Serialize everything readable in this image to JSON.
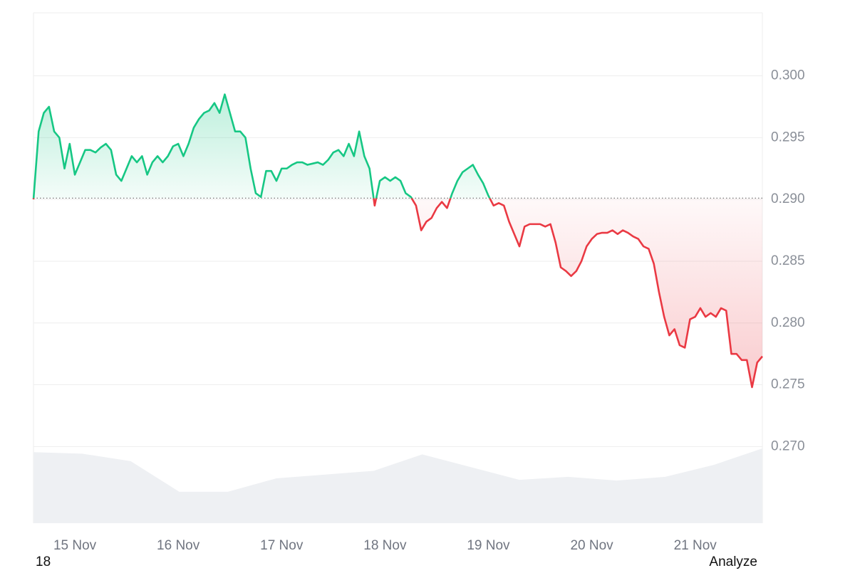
{
  "chart_data": {
    "type": "line",
    "categories": [
      null,
      null,
      null,
      null,
      null,
      null,
      null,
      null,
      "15 Nov",
      null,
      null,
      null,
      null,
      null,
      null,
      null,
      null,
      null,
      null,
      null,
      null,
      null,
      null,
      null,
      null,
      null,
      null,
      null,
      "16 Nov",
      null,
      null,
      null,
      null,
      null,
      null,
      null,
      null,
      null,
      null,
      null,
      null,
      null,
      null,
      null,
      null,
      null,
      null,
      null,
      "17 Nov",
      null,
      null,
      null,
      null,
      null,
      null,
      null,
      null,
      null,
      null,
      null,
      null,
      null,
      null,
      null,
      null,
      null,
      null,
      null,
      "18 Nov",
      null,
      null,
      null,
      null,
      null,
      null,
      null,
      null,
      null,
      null,
      null,
      null,
      null,
      null,
      null,
      null,
      null,
      null,
      null,
      "19 Nov",
      null,
      null,
      null,
      null,
      null,
      null,
      null,
      null,
      null,
      null,
      null,
      null,
      null,
      null,
      null,
      null,
      null,
      null,
      null,
      "20 Nov",
      null,
      null,
      null,
      null,
      null,
      null,
      null,
      null,
      null,
      null,
      null,
      null,
      null,
      null,
      null,
      null,
      null,
      null,
      null,
      "21 Nov",
      null,
      null,
      null,
      null,
      null,
      null,
      null,
      null,
      null,
      null,
      null,
      null,
      null
    ],
    "series": [
      {
        "color_up": "#16c784",
        "color_down": "#ea3943",
        "values": [
          0.29,
          0.2955,
          0.297,
          0.2975,
          0.2955,
          0.295,
          0.2925,
          0.2945,
          0.292,
          0.293,
          0.294,
          0.294,
          0.2938,
          0.2942,
          0.2945,
          0.294,
          0.292,
          0.2915,
          0.2925,
          0.2935,
          0.293,
          0.2935,
          0.292,
          0.293,
          0.2935,
          0.293,
          0.2935,
          0.2943,
          0.2945,
          0.2935,
          0.2945,
          0.2958,
          0.2965,
          0.297,
          0.2972,
          0.2978,
          0.297,
          0.2985,
          0.297,
          0.2955,
          0.2955,
          0.295,
          0.2925,
          0.2905,
          0.2902,
          0.2923,
          0.2923,
          0.2915,
          0.2925,
          0.2925,
          0.2928,
          0.293,
          0.293,
          0.2928,
          0.2929,
          0.293,
          0.2928,
          0.2932,
          0.2938,
          0.294,
          0.2935,
          0.2945,
          0.2935,
          0.2955,
          0.2935,
          0.2925,
          0.2895,
          0.2915,
          0.2918,
          0.2915,
          0.2918,
          0.2915,
          0.2905,
          0.2902,
          0.2895,
          0.2875,
          0.2882,
          0.2885,
          0.2893,
          0.2898,
          0.2893,
          0.2905,
          0.2915,
          0.2922,
          0.2925,
          0.2928,
          0.292,
          0.2913,
          0.2903,
          0.2895,
          0.2897,
          0.2895,
          0.2882,
          0.2872,
          0.2862,
          0.2878,
          0.288,
          0.288,
          0.288,
          0.2878,
          0.288,
          0.2865,
          0.2845,
          0.2842,
          0.2838,
          0.2842,
          0.285,
          0.2862,
          0.2868,
          0.2872,
          0.2873,
          0.2873,
          0.2875,
          0.2872,
          0.2875,
          0.2873,
          0.287,
          0.2868,
          0.2862,
          0.286,
          0.2848,
          0.2825,
          0.2805,
          0.279,
          0.2795,
          0.2782,
          0.278,
          0.2803,
          0.2805,
          0.2812,
          0.2805,
          0.2808,
          0.2805,
          0.2812,
          0.281,
          0.2775,
          0.2775,
          0.277,
          0.277,
          0.2748,
          0.2768,
          0.2773
        ]
      }
    ],
    "baseline": 0.2901,
    "volume": {
      "color": "#eef0f3",
      "values": [
        95,
        93,
        83,
        42,
        42,
        60,
        65,
        70,
        92,
        75,
        58,
        62,
        57,
        62,
        78,
        100
      ]
    },
    "ylim": [
      0.2638,
      0.3051
    ],
    "yticks": [
      {
        "value": 0.27,
        "label": "0.270"
      },
      {
        "value": 0.275,
        "label": "0.275"
      },
      {
        "value": 0.28,
        "label": "0.280"
      },
      {
        "value": 0.285,
        "label": "0.285"
      },
      {
        "value": 0.29,
        "label": "0.290"
      },
      {
        "value": 0.295,
        "label": "0.295"
      },
      {
        "value": 0.3,
        "label": "0.300"
      }
    ],
    "grid": true
  },
  "footer": {
    "left": "18",
    "right": "Analyze"
  }
}
